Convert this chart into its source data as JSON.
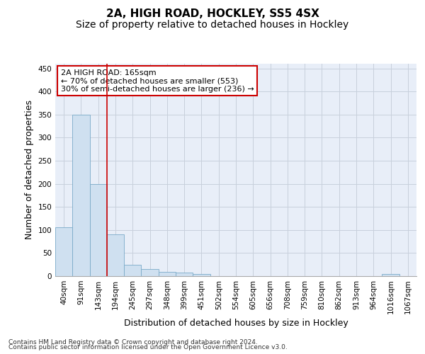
{
  "title_line1": "2A, HIGH ROAD, HOCKLEY, SS5 4SX",
  "title_line2": "Size of property relative to detached houses in Hockley",
  "xlabel": "Distribution of detached houses by size in Hockley",
  "ylabel": "Number of detached properties",
  "categories": [
    "40sqm",
    "91sqm",
    "143sqm",
    "194sqm",
    "245sqm",
    "297sqm",
    "348sqm",
    "399sqm",
    "451sqm",
    "502sqm",
    "554sqm",
    "605sqm",
    "656sqm",
    "708sqm",
    "759sqm",
    "810sqm",
    "862sqm",
    "913sqm",
    "964sqm",
    "1016sqm",
    "1067sqm"
  ],
  "values": [
    106,
    350,
    200,
    90,
    25,
    16,
    9,
    8,
    4,
    0,
    0,
    0,
    0,
    0,
    0,
    0,
    0,
    0,
    0,
    4,
    0
  ],
  "bar_color": "#cfe0f0",
  "bar_edge_color": "#7aaac8",
  "grid_color": "#c8d0dc",
  "background_color": "#e8eef8",
  "vline_x": 2.5,
  "vline_color": "#cc0000",
  "annotation_line1": "2A HIGH ROAD: 165sqm",
  "annotation_line2": "← 70% of detached houses are smaller (553)",
  "annotation_line3": "30% of semi-detached houses are larger (236) →",
  "ylim": [
    0,
    460
  ],
  "yticks": [
    0,
    50,
    100,
    150,
    200,
    250,
    300,
    350,
    400,
    450
  ],
  "footer_line1": "Contains HM Land Registry data © Crown copyright and database right 2024.",
  "footer_line2": "Contains public sector information licensed under the Open Government Licence v3.0.",
  "title_fontsize": 11,
  "subtitle_fontsize": 10,
  "axis_label_fontsize": 9,
  "tick_fontsize": 7.5,
  "footer_fontsize": 6.5,
  "annot_fontsize": 8
}
